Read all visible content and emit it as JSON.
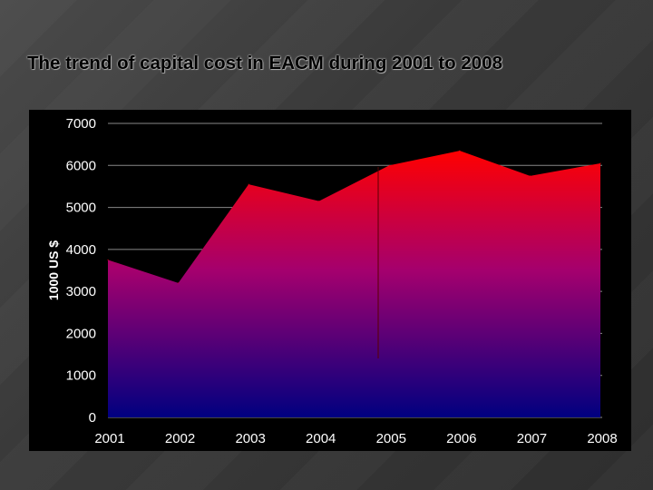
{
  "slide": {
    "title": "The trend of capital cost in EACM during 2001 to 2008"
  },
  "colors": {
    "area_top": "#ff0000",
    "area_mid": "#a4006e",
    "area_bottom": "#000080",
    "grid": "#888888",
    "panel": "#000000"
  },
  "chart_data": {
    "type": "area",
    "title": "The trend of capital cost in EACM during 2001 to 2008",
    "xlabel": "",
    "ylabel": "1000 US $",
    "categories": [
      "2001",
      "2002",
      "2003",
      "2004",
      "2005",
      "2006",
      "2007",
      "2008"
    ],
    "series": [
      {
        "values": [
          3750,
          3200,
          5550,
          5150,
          6000,
          6350,
          5750,
          6050
        ]
      }
    ],
    "ylim": [
      0,
      7000
    ],
    "yticks": [
      "0",
      "1000",
      "2000",
      "3000",
      "4000",
      "5000",
      "6000",
      "7000"
    ],
    "grid": true,
    "legend": "none"
  }
}
